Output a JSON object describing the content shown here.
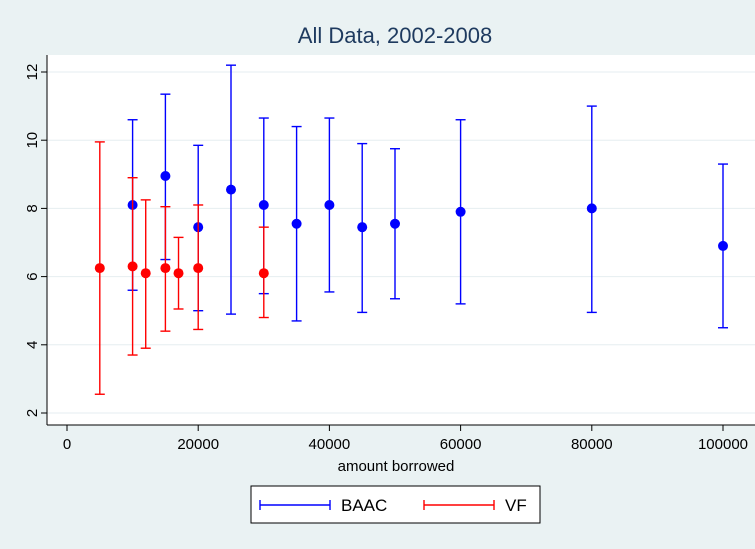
{
  "chart_data": {
    "type": "scatter",
    "title": "All Data, 2002-2008",
    "xlabel": "amount borrowed",
    "ylabel": "",
    "xlim": [
      0,
      100000
    ],
    "ylim": [
      2,
      12
    ],
    "x_ticks": [
      0,
      20000,
      40000,
      60000,
      80000,
      100000
    ],
    "x_tick_labels": [
      "0",
      "20000",
      "40000",
      "60000",
      "80000",
      "100000"
    ],
    "y_ticks": [
      2,
      4,
      6,
      8,
      10,
      12
    ],
    "y_tick_labels": [
      "2",
      "4",
      "6",
      "8",
      "10",
      "12"
    ],
    "grid": "horizontal",
    "legend_position": "bottom",
    "series": [
      {
        "name": "BAAC",
        "color": "#0000ff",
        "points": [
          {
            "x": 10000,
            "y": 8.1,
            "lo": 5.6,
            "hi": 10.6
          },
          {
            "x": 15000,
            "y": 8.95,
            "lo": 6.5,
            "hi": 11.35
          },
          {
            "x": 20000,
            "y": 7.45,
            "lo": 5.0,
            "hi": 9.85
          },
          {
            "x": 25000,
            "y": 8.55,
            "lo": 4.9,
            "hi": 12.2
          },
          {
            "x": 30000,
            "y": 8.1,
            "lo": 5.5,
            "hi": 10.65
          },
          {
            "x": 35000,
            "y": 7.55,
            "lo": 4.7,
            "hi": 10.4
          },
          {
            "x": 40000,
            "y": 8.1,
            "lo": 5.55,
            "hi": 10.65
          },
          {
            "x": 45000,
            "y": 7.45,
            "lo": 4.95,
            "hi": 9.9
          },
          {
            "x": 50000,
            "y": 7.55,
            "lo": 5.35,
            "hi": 9.75
          },
          {
            "x": 60000,
            "y": 7.9,
            "lo": 5.2,
            "hi": 10.6
          },
          {
            "x": 80000,
            "y": 8.0,
            "lo": 4.95,
            "hi": 11.0
          },
          {
            "x": 100000,
            "y": 6.9,
            "lo": 4.5,
            "hi": 9.3
          }
        ]
      },
      {
        "name": "VF",
        "color": "#ff0000",
        "points": [
          {
            "x": 5000,
            "y": 6.25,
            "lo": 2.55,
            "hi": 9.95
          },
          {
            "x": 10000,
            "y": 6.3,
            "lo": 3.7,
            "hi": 8.9
          },
          {
            "x": 12000,
            "y": 6.1,
            "lo": 3.9,
            "hi": 8.25
          },
          {
            "x": 15000,
            "y": 6.25,
            "lo": 4.4,
            "hi": 8.05
          },
          {
            "x": 17000,
            "y": 6.1,
            "lo": 5.05,
            "hi": 7.15
          },
          {
            "x": 20000,
            "y": 6.25,
            "lo": 4.45,
            "hi": 8.1
          },
          {
            "x": 30000,
            "y": 6.1,
            "lo": 4.8,
            "hi": 7.45
          }
        ]
      }
    ]
  }
}
